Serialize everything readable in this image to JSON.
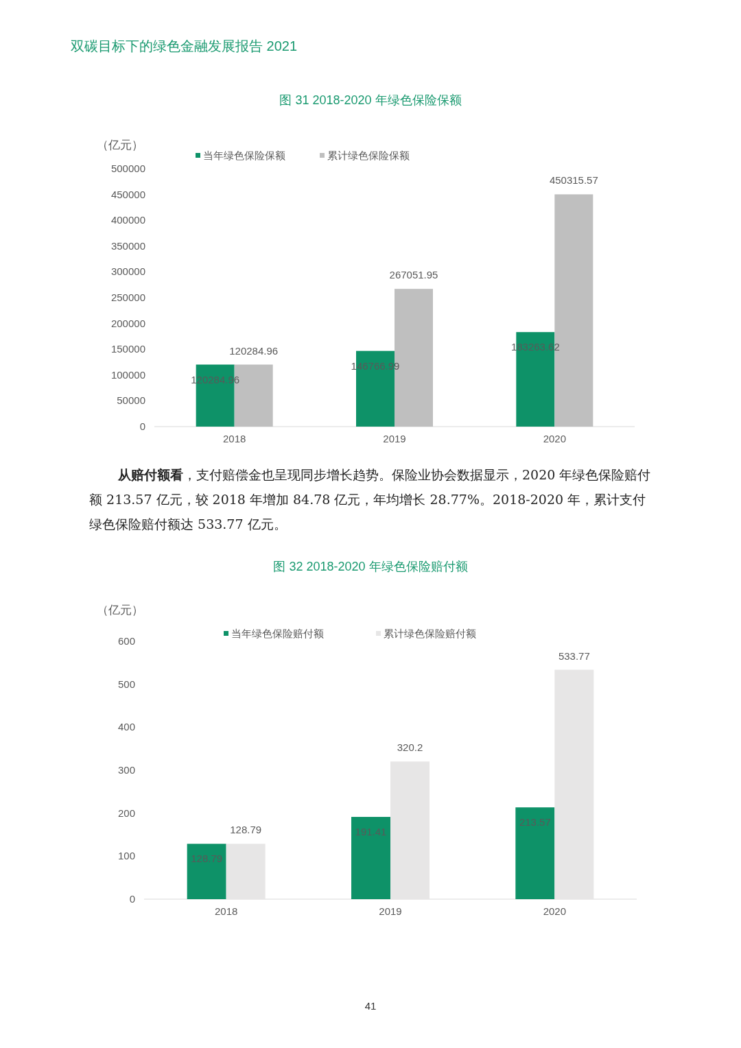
{
  "chart_data": [
    {
      "type": "bar",
      "title": "图 31 2018-2020 年绿色保险保额",
      "ylabel": "（亿元）",
      "categories": [
        "2018",
        "2019",
        "2020"
      ],
      "series": [
        {
          "name": "当年绿色保险保额",
          "color": "#0e9268",
          "values": [
            120284.96,
            146766.99,
            183263.62
          ]
        },
        {
          "name": "累计绿色保险保额",
          "color": "#bfbfbf",
          "values": [
            120284.96,
            267051.95,
            450315.57
          ]
        }
      ],
      "ylim": [
        0,
        500000
      ],
      "yticks": [
        0,
        50000,
        100000,
        150000,
        200000,
        250000,
        300000,
        350000,
        400000,
        450000,
        500000
      ],
      "data_labels": true,
      "legend": "top",
      "annotations": [
        "双碳目标下的绿色金融发展报告 2021",
        "**从赔付额看**，支付赔偿金也呈现同步增长趋势。保险业协会数据显示，2020 年绿色保险赔付额 213.57 亿元，较 2018 年增加 84.78 亿元，年均增长 28.77%。2018-2020 年，累计支付绿色保险赔付额达 533.77 亿元。"
      ]
    },
    {
      "type": "bar",
      "title": "图 32 2018-2020 年绿色保险赔付额",
      "ylabel": "（亿元）",
      "categories": [
        "2018",
        "2019",
        "2020"
      ],
      "series": [
        {
          "name": "当年绿色保险赔付额",
          "color": "#0e9268",
          "values": [
            128.79,
            191.41,
            213.57
          ]
        },
        {
          "name": "累计绿色保险赔付额",
          "color": "#e7e6e6",
          "values": [
            128.79,
            320.2,
            533.77
          ]
        }
      ],
      "ylim": [
        0,
        600
      ],
      "yticks": [
        0,
        100,
        200,
        300,
        400,
        500,
        600
      ],
      "data_labels": true,
      "legend": "top",
      "annotations": [
        "41"
      ]
    }
  ]
}
